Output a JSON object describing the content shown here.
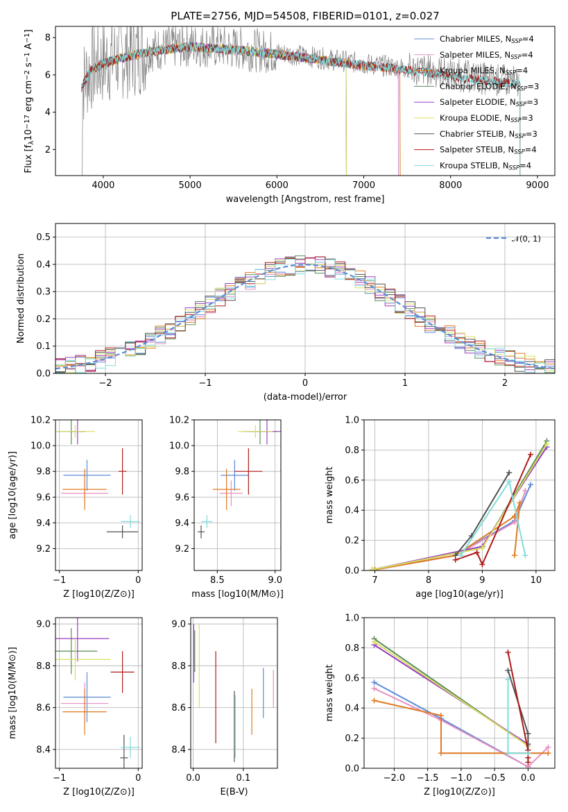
{
  "figure": {
    "title": "PLATE=2756, MJD=54508, FIBERID=0101, z=0.027"
  },
  "colors": {
    "Chabrier MILES": "#5b8bd6",
    "Salpeter MILES": "#e68fc0",
    "Kroupa MILES": "#e07820",
    "Chabrier ELODIE": "#5a8a5a",
    "Salpeter ELODIE": "#9a3ec2",
    "Kroupa ELODIE": "#d8e060",
    "Chabrier STELIB": "#505050",
    "Salpeter STELIB": "#b01818",
    "Kroupa STELIB": "#80dcdc"
  },
  "chart_data": [
    {
      "id": "spectrum",
      "type": "line",
      "xlabel": "wavelength [Angstrom, rest frame]",
      "ylabel": "Flux [f_λ 10^-17 erg cm^-2 s^-1 A^-1]",
      "xlim": [
        3450,
        9200
      ],
      "ylim": [
        0.6,
        8.6
      ],
      "xticks": [
        4000,
        5000,
        6000,
        7000,
        8000,
        9000
      ],
      "yticks": [
        2,
        4,
        6,
        8
      ],
      "legend_position": "top-right",
      "series": [
        {
          "name": "Chabrier MILES, N_SSP=4",
          "nssp": "4",
          "key": "Chabrier MILES",
          "range": [
            3750,
            7400
          ]
        },
        {
          "name": "Salpeter MILES, N_SSP=4",
          "nssp": "4",
          "key": "Salpeter MILES",
          "range": [
            3750,
            7400
          ]
        },
        {
          "name": "Kroupa MILES, N_SSP=4",
          "nssp": "4",
          "key": "Kroupa MILES",
          "range": [
            3750,
            7420
          ]
        },
        {
          "name": "Chabrier ELODIE, N_SSP=3",
          "nssp": "3",
          "key": "Chabrier ELODIE",
          "range": [
            3900,
            6800
          ]
        },
        {
          "name": "Salpeter ELODIE, N_SSP=3",
          "nssp": "3",
          "key": "Salpeter ELODIE",
          "range": [
            3900,
            6800
          ]
        },
        {
          "name": "Kroupa ELODIE, N_SSP=3",
          "nssp": "3",
          "key": "Kroupa ELODIE",
          "range": [
            3900,
            6800
          ]
        },
        {
          "name": "Chabrier STELIB, N_SSP=3",
          "nssp": "3",
          "key": "Chabrier STELIB",
          "range": [
            3750,
            8800
          ]
        },
        {
          "name": "Salpeter STELIB, N_SSP=4",
          "nssp": "4",
          "key": "Salpeter STELIB",
          "range": [
            3750,
            8800
          ]
        },
        {
          "name": "Kroupa STELIB, N_SSP=4",
          "nssp": "4",
          "key": "Kroupa STELIB",
          "range": [
            3750,
            8800
          ]
        }
      ],
      "continuum": [
        [
          3750,
          5.4
        ],
        [
          3850,
          6.3
        ],
        [
          4000,
          6.7
        ],
        [
          4200,
          7.0
        ],
        [
          4500,
          7.3
        ],
        [
          4800,
          7.5
        ],
        [
          5000,
          7.6
        ],
        [
          5300,
          7.5
        ],
        [
          5600,
          7.4
        ],
        [
          6000,
          7.2
        ],
        [
          6500,
          6.9
        ],
        [
          7000,
          6.6
        ],
        [
          7400,
          6.4
        ],
        [
          7800,
          6.2
        ],
        [
          8200,
          5.9
        ],
        [
          8600,
          5.7
        ],
        [
          8800,
          5.6
        ]
      ]
    },
    {
      "id": "residuals",
      "type": "histogram",
      "xlabel": "(data-model)/error",
      "ylabel": "Normed distribution",
      "xlim": [
        -2.5,
        2.5
      ],
      "ylim": [
        0,
        0.55
      ],
      "xticks": [
        -2,
        -1,
        0,
        1,
        2
      ],
      "yticks": [
        0.0,
        0.1,
        0.2,
        0.3,
        0.4,
        0.5
      ],
      "reference_curve": "N(0,1)",
      "legend_position": "top-right",
      "bin_width": 0.1
    },
    {
      "id": "age-vs-Z",
      "type": "errorbar",
      "xlabel": "Z [log10(Z/Z⊙)]",
      "ylabel": "age [log10(age/yr)]",
      "xlim": [
        -1.05,
        0.05
      ],
      "ylim": [
        9.03,
        10.2
      ],
      "xticks": [
        -1,
        0
      ],
      "yticks": [
        9.2,
        9.4,
        9.6,
        9.8,
        10.0,
        10.2
      ],
      "points": [
        {
          "key": "Chabrier MILES",
          "x": -0.65,
          "xerr": 0.3,
          "y": 9.77,
          "yerr": 0.12
        },
        {
          "key": "Salpeter MILES",
          "x": -0.68,
          "xerr": 0.3,
          "y": 9.63,
          "yerr": 0.1
        },
        {
          "key": "Kroupa MILES",
          "x": -0.68,
          "xerr": 0.28,
          "y": 9.66,
          "yerr": 0.16
        },
        {
          "key": "Chabrier ELODIE",
          "x": -0.85,
          "xerr": 0.18,
          "y": 10.11,
          "yerr": 0.1
        },
        {
          "key": "Salpeter ELODIE",
          "x": -0.77,
          "xerr": 0.1,
          "y": 10.11,
          "yerr": 0.1
        },
        {
          "key": "Kroupa ELODIE",
          "x": -0.8,
          "xerr": 0.25,
          "y": 10.11,
          "yerr": 0.05
        },
        {
          "key": "Chabrier STELIB",
          "x": -0.2,
          "xerr": 0.2,
          "y": 9.33,
          "yerr": 0.05
        },
        {
          "key": "Salpeter STELIB",
          "x": -0.2,
          "xerr": 0.05,
          "y": 9.8,
          "yerr": 0.18
        },
        {
          "key": "Kroupa STELIB",
          "x": -0.1,
          "xerr": 0.12,
          "y": 9.41,
          "yerr": 0.05
        }
      ]
    },
    {
      "id": "age-vs-mass",
      "type": "errorbar",
      "xlabel": "mass [log10(M/M⊙)]",
      "ylabel": "",
      "xlim": [
        8.3,
        9.05
      ],
      "ylim": [
        9.03,
        10.2
      ],
      "xticks": [
        8.5,
        9.0
      ],
      "yticks": [
        9.2,
        9.4,
        9.6,
        9.8,
        10.0,
        10.2
      ],
      "points": [
        {
          "key": "Chabrier MILES",
          "x": 8.65,
          "xerr": 0.12,
          "y": 9.77,
          "yerr": 0.12
        },
        {
          "key": "Salpeter MILES",
          "x": 8.62,
          "xerr": 0.1,
          "y": 9.63,
          "yerr": 0.1
        },
        {
          "key": "Kroupa MILES",
          "x": 8.58,
          "xerr": 0.12,
          "y": 9.66,
          "yerr": 0.16
        },
        {
          "key": "Chabrier ELODIE",
          "x": 8.87,
          "xerr": 0.15,
          "y": 10.11,
          "yerr": 0.1
        },
        {
          "key": "Salpeter ELODIE",
          "x": 8.93,
          "xerr": 0.15,
          "y": 10.11,
          "yerr": 0.1
        },
        {
          "key": "Kroupa ELODIE",
          "x": 8.83,
          "xerr": 0.15,
          "y": 10.11,
          "yerr": 0.05
        },
        {
          "key": "Chabrier STELIB",
          "x": 8.36,
          "xerr": 0.03,
          "y": 9.33,
          "yerr": 0.05
        },
        {
          "key": "Salpeter STELIB",
          "x": 8.77,
          "xerr": 0.12,
          "y": 9.8,
          "yerr": 0.18
        },
        {
          "key": "Kroupa STELIB",
          "x": 8.41,
          "xerr": 0.05,
          "y": 9.41,
          "yerr": 0.05
        }
      ]
    },
    {
      "id": "weight-vs-age",
      "type": "line",
      "xlabel": "age [log10(age/yr)]",
      "ylabel": "mass weight",
      "xlim": [
        6.8,
        10.35
      ],
      "ylim": [
        0,
        1
      ],
      "xticks": [
        7,
        8,
        9,
        10
      ],
      "yticks": [
        0.0,
        0.2,
        0.4,
        0.6,
        0.8,
        1.0
      ],
      "series": [
        {
          "key": "Chabrier MILES",
          "x": [
            7.0,
            8.5,
            9.6,
            9.9
          ],
          "y": [
            0.005,
            0.1,
            0.33,
            0.57
          ]
        },
        {
          "key": "Salpeter MILES",
          "x": [
            7.0,
            8.5,
            9.6,
            9.8
          ],
          "y": [
            0.005,
            0.1,
            0.32,
            0.53
          ]
        },
        {
          "key": "Kroupa MILES",
          "x": [
            7.0,
            8.5,
            9.6,
            9.7,
            9.6
          ],
          "y": [
            0.005,
            0.1,
            0.36,
            0.45,
            0.1
          ]
        },
        {
          "key": "Chabrier ELODIE",
          "x": [
            6.95,
            9.0,
            10.2
          ],
          "y": [
            0.005,
            0.15,
            0.86
          ]
        },
        {
          "key": "Salpeter ELODIE",
          "x": [
            6.95,
            9.0,
            10.2
          ],
          "y": [
            0.005,
            0.16,
            0.82
          ]
        },
        {
          "key": "Kroupa ELODIE",
          "x": [
            6.95,
            9.0,
            10.2
          ],
          "y": [
            0.005,
            0.15,
            0.84
          ]
        },
        {
          "key": "Chabrier STELIB",
          "x": [
            8.5,
            8.8,
            9.5
          ],
          "y": [
            0.1,
            0.23,
            0.65
          ]
        },
        {
          "key": "Salpeter STELIB",
          "x": [
            8.5,
            8.9,
            9.0,
            9.9
          ],
          "y": [
            0.07,
            0.12,
            0.04,
            0.77
          ]
        },
        {
          "key": "Kroupa STELIB",
          "x": [
            8.6,
            9.5,
            9.8
          ],
          "y": [
            0.1,
            0.59,
            0.1
          ]
        }
      ]
    },
    {
      "id": "mass-vs-Z",
      "type": "errorbar",
      "xlabel": "Z [log10(Z/Z⊙)]",
      "ylabel": "mass [log10(M/M⊙)]",
      "xlim": [
        -1.05,
        0.05
      ],
      "ylim": [
        8.31,
        9.03
      ],
      "xticks": [
        -1,
        0
      ],
      "yticks": [
        8.4,
        8.6,
        8.8,
        9.0
      ],
      "points": [
        {
          "key": "Chabrier MILES",
          "x": -0.65,
          "xerr": 0.3,
          "y": 8.65,
          "yerr": 0.12
        },
        {
          "key": "Salpeter MILES",
          "x": -0.68,
          "xerr": 0.3,
          "y": 8.62,
          "yerr": 0.1
        },
        {
          "key": "Kroupa MILES",
          "x": -0.68,
          "xerr": 0.28,
          "y": 8.58,
          "yerr": 0.11
        },
        {
          "key": "Chabrier ELODIE",
          "x": -0.85,
          "xerr": 0.33,
          "y": 8.87,
          "yerr": 0.11
        },
        {
          "key": "Salpeter ELODIE",
          "x": -0.77,
          "xerr": 0.4,
          "y": 8.93,
          "yerr": 0.11
        },
        {
          "key": "Kroupa ELODIE",
          "x": -0.8,
          "xerr": 0.45,
          "y": 8.83,
          "yerr": 0.1
        },
        {
          "key": "Chabrier STELIB",
          "x": -0.18,
          "xerr": 0.05,
          "y": 8.36,
          "yerr": 0.11
        },
        {
          "key": "Salpeter STELIB",
          "x": -0.2,
          "xerr": 0.15,
          "y": 8.77,
          "yerr": 0.1
        },
        {
          "key": "Kroupa STELIB",
          "x": -0.1,
          "xerr": 0.12,
          "y": 8.41,
          "yerr": 0.05
        }
      ]
    },
    {
      "id": "mass-vs-EBV",
      "type": "errorbar",
      "xlabel": "E(B-V)",
      "ylabel": "",
      "xlim": [
        -0.005,
        0.168
      ],
      "ylim": [
        8.31,
        9.03
      ],
      "xticks": [
        0.0,
        0.1
      ],
      "yticks": [
        8.4,
        8.6,
        8.8,
        9.0
      ],
      "points": [
        {
          "key": "Chabrier MILES",
          "x": 0.14,
          "y": 8.67,
          "yerr": 0.12
        },
        {
          "key": "Salpeter MILES",
          "x": 0.16,
          "y": 8.69,
          "yerr": 0.09
        },
        {
          "key": "Kroupa MILES",
          "x": 0.117,
          "y": 8.58,
          "yerr": 0.11
        },
        {
          "key": "Chabrier ELODIE",
          "x": 0.003,
          "y": 8.87,
          "yerr": 0.1
        },
        {
          "key": "Salpeter ELODIE",
          "x": 0.001,
          "y": 8.86,
          "yerr": 0.14
        },
        {
          "key": "Kroupa ELODIE",
          "x": 0.012,
          "y": 8.8,
          "yerr": 0.2
        },
        {
          "key": "Chabrier STELIB",
          "x": 0.082,
          "y": 8.51,
          "yerr": 0.17
        },
        {
          "key": "Salpeter STELIB",
          "x": 0.045,
          "y": 8.65,
          "yerr": 0.22
        },
        {
          "key": "Kroupa STELIB",
          "x": 0.084,
          "y": 8.51,
          "yerr": 0.15
        }
      ]
    },
    {
      "id": "weight-vs-Z",
      "type": "line",
      "xlabel": "Z [log10(Z/Z⊙)]",
      "ylabel": "mass weight",
      "xlim": [
        -2.45,
        0.4
      ],
      "ylim": [
        0,
        1
      ],
      "xticks": [
        -2.0,
        -1.5,
        -1.0,
        -0.5,
        0.0
      ],
      "yticks": [
        0.0,
        0.2,
        0.4,
        0.6,
        0.8,
        1.0
      ],
      "series": [
        {
          "key": "Chabrier MILES",
          "x": [
            -2.3,
            -1.3,
            0.0
          ],
          "y": [
            0.57,
            0.33,
            0.01
          ]
        },
        {
          "key": "Salpeter MILES",
          "x": [
            -2.3,
            -1.3,
            0.0,
            0.3
          ],
          "y": [
            0.53,
            0.32,
            0.01,
            0.14
          ]
        },
        {
          "key": "Kroupa MILES",
          "x": [
            -2.3,
            -1.3,
            -1.3,
            0.3
          ],
          "y": [
            0.45,
            0.35,
            0.1,
            0.1
          ]
        },
        {
          "key": "Chabrier ELODIE",
          "x": [
            -2.3,
            0.0
          ],
          "y": [
            0.86,
            0.15
          ]
        },
        {
          "key": "Salpeter ELODIE",
          "x": [
            -2.3,
            0.0
          ],
          "y": [
            0.82,
            0.16
          ]
        },
        {
          "key": "Kroupa ELODIE",
          "x": [
            -2.3,
            0.0
          ],
          "y": [
            0.84,
            0.15
          ]
        },
        {
          "key": "Chabrier STELIB",
          "x": [
            -0.3,
            0.0,
            0.0
          ],
          "y": [
            0.65,
            0.23,
            0.1
          ]
        },
        {
          "key": "Salpeter STELIB",
          "x": [
            -0.3,
            0.0,
            0.0,
            0.0
          ],
          "y": [
            0.77,
            0.12,
            0.07,
            0.04
          ]
        },
        {
          "key": "Kroupa STELIB",
          "x": [
            -0.3,
            -0.3,
            0.0
          ],
          "y": [
            0.59,
            0.1,
            0.1
          ]
        }
      ]
    }
  ]
}
